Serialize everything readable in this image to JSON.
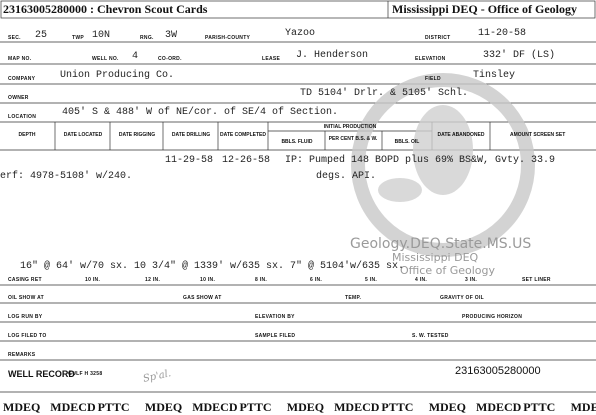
{
  "header": {
    "left": "23163005280000 : Chevron Scout Cards",
    "right": "Mississippi DEQ - Office of Geology"
  },
  "card": {
    "sec": {
      "label": "SEC.",
      "value": "25"
    },
    "twp": {
      "label": "TWP",
      "value": "10N"
    },
    "rng": {
      "label": "RNG.",
      "value": "3W"
    },
    "parish": {
      "label": "PARISH-COUNTY",
      "value": "Yazoo"
    },
    "district": {
      "label": "DISTRICT",
      "value": "11-20-58"
    },
    "map_no": {
      "label": "MAP NO."
    },
    "well_no": {
      "label": "WELL NO.",
      "value": "4"
    },
    "coord": {
      "label": "CO-ORD."
    },
    "lease": {
      "label": "LEASE",
      "value": "J. Henderson"
    },
    "elevation": {
      "label": "ELEVATION",
      "value": "332' DF (LS)"
    },
    "company": {
      "label": "COMPANY",
      "value": "Union Producing Co."
    },
    "field": {
      "label": "FIELD",
      "value": "Tinsley"
    },
    "owner": {
      "label": "OWNER",
      "value": "TD 5104' Drlr. & 5105' Schl."
    },
    "location": {
      "label": "LOCATION",
      "value": "405' S & 488' W of NE/cor. of SE/4 of Section."
    },
    "table": {
      "headers": [
        "DEPTH",
        "DATE LOCATED",
        "DATE RIGGING",
        "DATE DRILLING",
        "DATE COMPLETED",
        "INITIAL PRODUCTION",
        "DATE ABANDONED",
        "AMOUNT SCREEN SET"
      ],
      "subheaders": [
        "BBLS. FLUID",
        "PER CENT B.S. & W.",
        "BBLS. OIL"
      ],
      "date_drilling": "11-29-58",
      "date_completed": "12-26-58",
      "production": [
        "IP: Pumped 148 BOPD plus 69% BS&W, Gvty. 33.9",
        "degs. API."
      ],
      "perf": "erf: 4978-5108' w/240."
    },
    "watermark": [
      "Geology.DEQ.State.MS.US",
      "Mississippi DEQ",
      "Office of Geology"
    ],
    "casing": "16\" @ 64' w/70 sx.   10 3/4\" @ 1339' w/635 sx.  7\" @ 5104'w/635 sx.",
    "casing_labels": [
      "CASING RET",
      "10 IN.",
      "12 IN.",
      "10 IN.",
      "8 IN.",
      "6 IN.",
      "5 IN.",
      "4 IN.",
      "3 IN.",
      "SET LINER"
    ],
    "oil_show": "OIL SHOW AT",
    "gas_show": "GAS SHOW AT",
    "temp": "TEMP.",
    "gravity": "GRAVITY OF OIL",
    "log_run": "LOG RUN BY",
    "elevation_by": "ELEVATION BY",
    "producing": "PRODUCING HORIZON",
    "log_filed": "LOG FILED TO",
    "sample_filed": "SAMPLE FILED",
    "sw_tested": "S. W. TESTED",
    "remarks": "REMARKS",
    "well_record": "WELL RECORD",
    "form": "GULF H 3258",
    "handwritten": "Sp'al.",
    "api": "23163005280000"
  },
  "footer": [
    "MDEQ",
    "MDECD",
    "PTTC",
    "MDEQ",
    "MDECD",
    "PTTC",
    "MDEQ",
    "MDECD",
    "PTTC",
    "MDEQ",
    "MDECD",
    "PTTC",
    "MDE"
  ]
}
